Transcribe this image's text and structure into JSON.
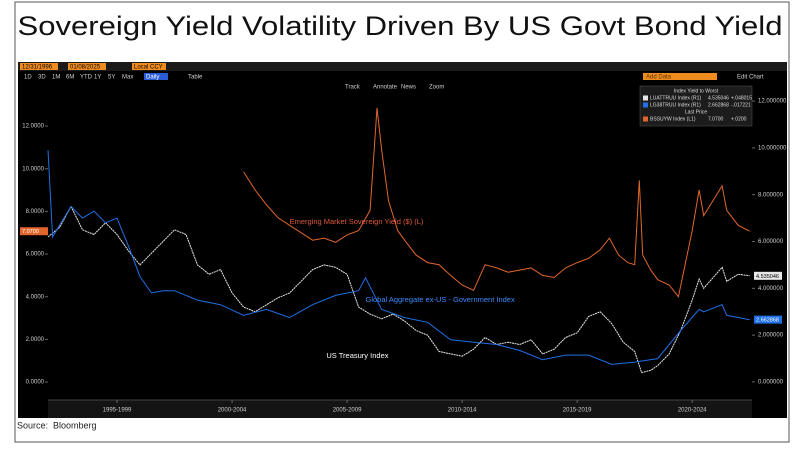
{
  "header": {
    "title": "Sovereign Yield Volatility Driven By US Govt Bond Yield"
  },
  "toolbar": {
    "start_date": "12/31/1996",
    "end_date": "01/08/2025",
    "currency": "Local CCY",
    "ranges": [
      "1D",
      "3D",
      "1M",
      "6M",
      "YTD",
      "1Y",
      "5Y",
      "Max"
    ],
    "frequency": "Daily",
    "table": "Table",
    "add_data": "Add Data",
    "edit_chart": "Edit Chart",
    "tools": [
      "Track",
      "Annotate",
      "News",
      "Zoom"
    ]
  },
  "chart_data": {
    "type": "line",
    "xlim": [
      1994.5,
      2025.1
    ],
    "xticks": [
      {
        "value": 1997.5,
        "label": "1995-1999"
      },
      {
        "value": 2002.5,
        "label": "2000-2004"
      },
      {
        "value": 2007.5,
        "label": "2005-2009"
      },
      {
        "value": 2012.5,
        "label": "2010-2014"
      },
      {
        "value": 2017.5,
        "label": "2015-2019"
      },
      {
        "value": 2022.5,
        "label": "2020-2024"
      }
    ],
    "ylim": [
      -0.84,
      13.97
    ],
    "yticks": [
      {
        "value": 0,
        "label": "0.0000"
      },
      {
        "value": 2,
        "label": "2.0000"
      },
      {
        "value": 4,
        "label": "4.0000"
      },
      {
        "value": 6,
        "label": "6.0000"
      },
      {
        "value": 8,
        "label": "8.0000"
      },
      {
        "value": 10,
        "label": "10.0000"
      },
      {
        "value": 12,
        "label": "12.0000"
      }
    ],
    "y2lim": [
      -0.77,
      12.73
    ],
    "y2ticks": [
      {
        "value": 0,
        "label": "0.000000"
      },
      {
        "value": 2,
        "label": "2.000000"
      },
      {
        "value": 4,
        "label": "4.000000"
      },
      {
        "value": 6,
        "label": "6.000000"
      },
      {
        "value": 8,
        "label": "8.000000"
      },
      {
        "value": 10,
        "label": "10.000000"
      },
      {
        "value": 12,
        "label": "12.000000"
      }
    ],
    "legend_header": "Index Yield to Worst",
    "legend_subheader": "Last Price",
    "series": [
      {
        "name": "LUATTRUU Index (R1)",
        "color": "#e6e6e6",
        "axis": "y2",
        "last": 4.535046,
        "change": 0.048015,
        "change_label": "+.048015",
        "x": [
          1994.5,
          1995,
          1995.5,
          1996,
          1996.5,
          1997,
          1997.5,
          1998,
          1998.5,
          1999,
          1999.5,
          2000,
          2000.5,
          2001,
          2001.5,
          2002,
          2002.5,
          2003,
          2003.5,
          2004,
          2004.5,
          2005,
          2005.5,
          2006,
          2006.5,
          2007,
          2007.5,
          2008,
          2008.5,
          2009,
          2009.5,
          2010,
          2010.5,
          2011,
          2011.5,
          2012,
          2012.5,
          2013,
          2013.5,
          2014,
          2014.5,
          2015,
          2015.5,
          2016,
          2016.5,
          2017,
          2017.5,
          2018,
          2018.5,
          2019,
          2019.5,
          2020,
          2020.3,
          2020.7,
          2021,
          2021.5,
          2022,
          2022.5,
          2022.8,
          2023,
          2023.8,
          2024,
          2024.5,
          2025
        ],
        "values": [
          6.2,
          6.6,
          7.5,
          6.5,
          6.3,
          6.8,
          6.3,
          5.6,
          5.0,
          5.5,
          6.0,
          6.5,
          6.3,
          5.0,
          4.6,
          4.8,
          3.8,
          3.2,
          3.0,
          3.3,
          3.6,
          3.8,
          4.3,
          4.8,
          5.0,
          4.9,
          4.6,
          3.2,
          2.9,
          2.7,
          2.9,
          2.6,
          2.2,
          2.0,
          1.3,
          1.2,
          1.1,
          1.4,
          1.9,
          1.6,
          1.7,
          1.6,
          1.8,
          1.2,
          1.4,
          1.9,
          2.1,
          2.8,
          3.0,
          2.5,
          1.7,
          1.3,
          0.4,
          0.5,
          0.7,
          1.2,
          2.2,
          3.5,
          4.4,
          4.0,
          4.9,
          4.3,
          4.6,
          4.54
        ]
      },
      {
        "name": "LG38TRUU Index (R1)",
        "color": "#1f6fe6",
        "axis": "y2",
        "last": 2.662868,
        "change": -0.017221,
        "change_label": "-.017221",
        "x": [
          1994.5,
          1994.7,
          1995.5,
          1996,
          1996.5,
          1997,
          1997.5,
          1998,
          1998.5,
          1999,
          1999.5,
          2000,
          2001,
          2002,
          2003,
          2004,
          2005,
          2006,
          2007,
          2008,
          2008.3,
          2009,
          2010,
          2011,
          2012,
          2013,
          2014,
          2015,
          2016,
          2017,
          2018,
          2019,
          2020,
          2021,
          2022,
          2022.8,
          2023,
          2023.8,
          2024,
          2025
        ],
        "values": [
          9.9,
          6.2,
          7.5,
          7.0,
          7.3,
          6.8,
          7.0,
          5.8,
          4.5,
          3.8,
          3.9,
          3.9,
          3.5,
          3.3,
          2.85,
          3.1,
          2.75,
          3.3,
          3.7,
          3.9,
          4.45,
          3.1,
          2.75,
          2.55,
          1.8,
          1.7,
          1.6,
          1.35,
          0.95,
          1.15,
          1.15,
          0.75,
          0.85,
          1.0,
          2.2,
          3.1,
          3.0,
          3.3,
          2.85,
          2.66
        ]
      },
      {
        "name": "BSSUYW Index (L1)",
        "color": "#e2662c",
        "axis": "y",
        "last": 7.07,
        "last_label": "7.0700",
        "change": 0.02,
        "change_label": "+.0200",
        "x": [
          2003,
          2003.5,
          2004,
          2004.5,
          2005,
          2005.5,
          2006,
          2006.5,
          2007,
          2007.5,
          2008,
          2008.5,
          2008.8,
          2009,
          2009.3,
          2009.7,
          2010,
          2010.5,
          2011,
          2011.5,
          2012,
          2012.5,
          2013,
          2013.5,
          2014,
          2014.5,
          2015,
          2015.5,
          2016,
          2016.5,
          2017,
          2017.5,
          2018,
          2018.5,
          2018.9,
          2019.3,
          2019.7,
          2020,
          2020.2,
          2020.35,
          2020.7,
          2021,
          2021.5,
          2021.9,
          2022.5,
          2022.8,
          2023,
          2023.8,
          2024,
          2024.5,
          2025
        ],
        "values": [
          9.85,
          9.0,
          8.3,
          7.7,
          7.35,
          7.0,
          6.65,
          6.75,
          6.55,
          6.9,
          7.1,
          8.05,
          12.85,
          10.9,
          8.5,
          7.1,
          6.65,
          5.95,
          5.6,
          5.5,
          5.0,
          4.55,
          4.3,
          5.5,
          5.35,
          5.15,
          5.25,
          5.35,
          5.0,
          4.9,
          5.35,
          5.6,
          5.8,
          6.2,
          6.75,
          5.95,
          5.6,
          5.5,
          9.45,
          5.95,
          5.25,
          4.8,
          4.55,
          4.0,
          7.1,
          9.0,
          7.8,
          9.2,
          8.05,
          7.35,
          7.07
        ]
      }
    ],
    "annotations": [
      {
        "text": "Emerging Market Sovereign Yield ($) (L)",
        "x": 2005.0,
        "y": 7.5,
        "axis": "y",
        "color": "#e05a3a"
      },
      {
        "text": "Global Aggregate ex-US - Government Index",
        "x": 2008.3,
        "y": 3.5,
        "axis": "y2",
        "color": "#3d8bff"
      },
      {
        "text": "US Treasury Index",
        "x": 2006.6,
        "y": 1.1,
        "axis": "y2",
        "color": "#ffffff"
      }
    ]
  },
  "source": "Source:  Bloomberg"
}
